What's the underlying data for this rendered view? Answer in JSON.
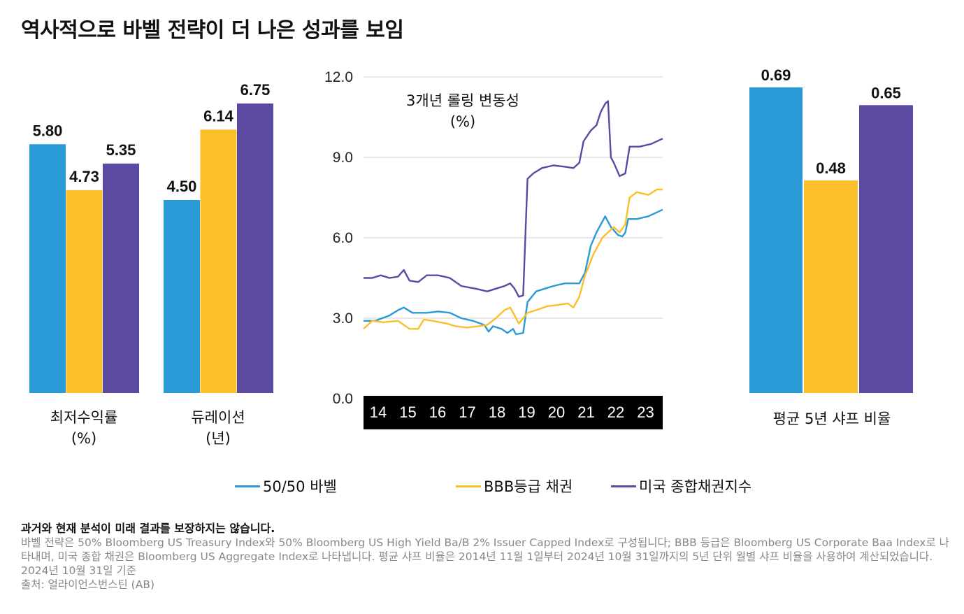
{
  "title": "역사적으로 바벨 전략이 더 나은 성과를 보임",
  "colors": {
    "barbell": "#2a9ad6",
    "bbb": "#fbbf2a",
    "aggregate": "#5b49a2",
    "grid": "#d0d0d0",
    "axis_band": "#000000"
  },
  "chart_data": [
    {
      "type": "bar",
      "categories": [
        "최저수익률\n(%)",
        "듀레이션\n(년)"
      ],
      "category_lines": [
        [
          "최저수익률",
          "(%)"
        ],
        [
          "듀레이션",
          "(년)"
        ]
      ],
      "series": [
        {
          "name": "50/50 바벨",
          "values": [
            5.8,
            4.5
          ]
        },
        {
          "name": "BBB등급 채권",
          "values": [
            4.73,
            6.14
          ]
        },
        {
          "name": "미국 종합채권지수",
          "values": [
            5.35,
            6.75
          ]
        }
      ],
      "value_labels": [
        [
          "5.80",
          "4.73",
          "5.35"
        ],
        [
          "4.50",
          "6.14",
          "6.75"
        ]
      ],
      "ylim": [
        0,
        7.0
      ]
    },
    {
      "type": "line",
      "title_lines": [
        "3개년 롤링 변동성",
        "(%)"
      ],
      "x_ticks": [
        "14",
        "15",
        "16",
        "17",
        "18",
        "19",
        "20",
        "21",
        "22",
        "23"
      ],
      "y_ticks": [
        "0.0",
        "3.0",
        "6.0",
        "9.0",
        "12.0"
      ],
      "xlim": [
        2013.6,
        2024.0
      ],
      "ylim": [
        0,
        12
      ],
      "series": [
        {
          "name": "50/50 바벨",
          "points": [
            [
              2013.6,
              2.9
            ],
            [
              2014.0,
              2.9
            ],
            [
              2014.5,
              3.1
            ],
            [
              2014.8,
              3.3
            ],
            [
              2015.0,
              3.4
            ],
            [
              2015.3,
              3.2
            ],
            [
              2015.8,
              3.2
            ],
            [
              2016.2,
              3.25
            ],
            [
              2016.6,
              3.2
            ],
            [
              2017.0,
              3.0
            ],
            [
              2017.4,
              2.9
            ],
            [
              2017.8,
              2.75
            ],
            [
              2017.95,
              2.5
            ],
            [
              2018.1,
              2.7
            ],
            [
              2018.4,
              2.6
            ],
            [
              2018.6,
              2.45
            ],
            [
              2018.8,
              2.6
            ],
            [
              2018.9,
              2.4
            ],
            [
              2019.15,
              2.45
            ],
            [
              2019.3,
              3.6
            ],
            [
              2019.6,
              4.0
            ],
            [
              2019.9,
              4.1
            ],
            [
              2020.2,
              4.2
            ],
            [
              2020.6,
              4.3
            ],
            [
              2020.9,
              4.3
            ],
            [
              2021.1,
              4.3
            ],
            [
              2021.3,
              4.7
            ],
            [
              2021.5,
              5.7
            ],
            [
              2021.7,
              6.2
            ],
            [
              2021.9,
              6.6
            ],
            [
              2022.0,
              6.8
            ],
            [
              2022.2,
              6.4
            ],
            [
              2022.45,
              6.1
            ],
            [
              2022.6,
              6.05
            ],
            [
              2022.7,
              6.2
            ],
            [
              2022.8,
              6.7
            ],
            [
              2023.1,
              6.7
            ],
            [
              2023.5,
              6.8
            ],
            [
              2024.0,
              7.05
            ]
          ]
        },
        {
          "name": "BBB등급 채권",
          "points": [
            [
              2013.6,
              2.6
            ],
            [
              2013.9,
              2.9
            ],
            [
              2014.3,
              2.85
            ],
            [
              2014.8,
              2.9
            ],
            [
              2015.2,
              2.6
            ],
            [
              2015.5,
              2.6
            ],
            [
              2015.7,
              2.95
            ],
            [
              2016.0,
              2.9
            ],
            [
              2016.5,
              2.8
            ],
            [
              2016.8,
              2.7
            ],
            [
              2017.2,
              2.65
            ],
            [
              2017.6,
              2.7
            ],
            [
              2017.9,
              2.75
            ],
            [
              2018.2,
              3.0
            ],
            [
              2018.5,
              3.3
            ],
            [
              2018.7,
              3.4
            ],
            [
              2018.85,
              3.1
            ],
            [
              2019.0,
              2.8
            ],
            [
              2019.15,
              3.0
            ],
            [
              2019.3,
              3.2
            ],
            [
              2019.6,
              3.3
            ],
            [
              2020.0,
              3.45
            ],
            [
              2020.4,
              3.5
            ],
            [
              2020.7,
              3.55
            ],
            [
              2020.9,
              3.4
            ],
            [
              2021.1,
              3.8
            ],
            [
              2021.3,
              4.6
            ],
            [
              2021.6,
              5.4
            ],
            [
              2021.9,
              6.0
            ],
            [
              2022.1,
              6.2
            ],
            [
              2022.3,
              6.4
            ],
            [
              2022.5,
              6.2
            ],
            [
              2022.7,
              6.5
            ],
            [
              2022.85,
              7.5
            ],
            [
              2023.1,
              7.7
            ],
            [
              2023.5,
              7.6
            ],
            [
              2023.8,
              7.8
            ],
            [
              2024.0,
              7.8
            ]
          ]
        },
        {
          "name": "미국 종합채권지수",
          "points": [
            [
              2013.6,
              4.5
            ],
            [
              2013.9,
              4.5
            ],
            [
              2014.2,
              4.6
            ],
            [
              2014.5,
              4.5
            ],
            [
              2014.8,
              4.55
            ],
            [
              2015.0,
              4.8
            ],
            [
              2015.2,
              4.4
            ],
            [
              2015.5,
              4.35
            ],
            [
              2015.8,
              4.6
            ],
            [
              2016.2,
              4.6
            ],
            [
              2016.6,
              4.5
            ],
            [
              2017.0,
              4.2
            ],
            [
              2017.5,
              4.1
            ],
            [
              2017.9,
              4.0
            ],
            [
              2018.2,
              4.1
            ],
            [
              2018.5,
              4.2
            ],
            [
              2018.7,
              4.3
            ],
            [
              2018.85,
              4.1
            ],
            [
              2019.0,
              3.8
            ],
            [
              2019.15,
              3.85
            ],
            [
              2019.3,
              8.2
            ],
            [
              2019.5,
              8.4
            ],
            [
              2019.8,
              8.6
            ],
            [
              2020.2,
              8.7
            ],
            [
              2020.6,
              8.65
            ],
            [
              2020.9,
              8.6
            ],
            [
              2021.1,
              8.8
            ],
            [
              2021.25,
              9.6
            ],
            [
              2021.5,
              10.0
            ],
            [
              2021.7,
              10.2
            ],
            [
              2021.85,
              10.7
            ],
            [
              2022.0,
              11.0
            ],
            [
              2022.1,
              11.1
            ],
            [
              2022.2,
              9.0
            ],
            [
              2022.3,
              8.8
            ],
            [
              2022.5,
              8.3
            ],
            [
              2022.7,
              8.4
            ],
            [
              2022.85,
              9.4
            ],
            [
              2023.2,
              9.4
            ],
            [
              2023.6,
              9.5
            ],
            [
              2024.0,
              9.7
            ]
          ]
        }
      ]
    },
    {
      "type": "bar",
      "category": "평균 5년 샤프 비율",
      "series": [
        {
          "name": "50/50 바벨",
          "values": [
            0.69
          ]
        },
        {
          "name": "BBB등급 채권",
          "values": [
            0.48
          ]
        },
        {
          "name": "미국 종합채권지수",
          "values": [
            0.65
          ]
        }
      ],
      "value_labels": [
        "0.69",
        "0.48",
        "0.65"
      ],
      "ylim": [
        0,
        0.69
      ]
    }
  ],
  "legend": [
    {
      "label": "50/50 바벨",
      "color": "#2a9ad6"
    },
    {
      "label": "BBB등급 채권",
      "color": "#fbbf2a"
    },
    {
      "label": "미국 종합채권지수",
      "color": "#5b49a2"
    }
  ],
  "notes": {
    "disclaimer": "과거와 현재 분석이 미래 결과를 보장하지는 않습니다.",
    "description": "바벨 전략은 50% Bloomberg US Treasury Index와 50% Bloomberg US High Yield Ba/B 2% Issuer Capped Index로 구성됩니다; BBB 등급은 Bloomberg US Corporate Baa Index로 나타내며, 미국 종합 채권은 Bloomberg US Aggregate Index로 나타냅니다. 평균 샤프 비율은 2014년 11월 1일부터 2024년 10월 31일까지의 5년 단위 월별 샤프 비율을 사용하여 계산되었습니다.",
    "asof": "2024년 10월 31일 기준",
    "source": "출처: 얼라이언스번스틴 (AB)"
  }
}
